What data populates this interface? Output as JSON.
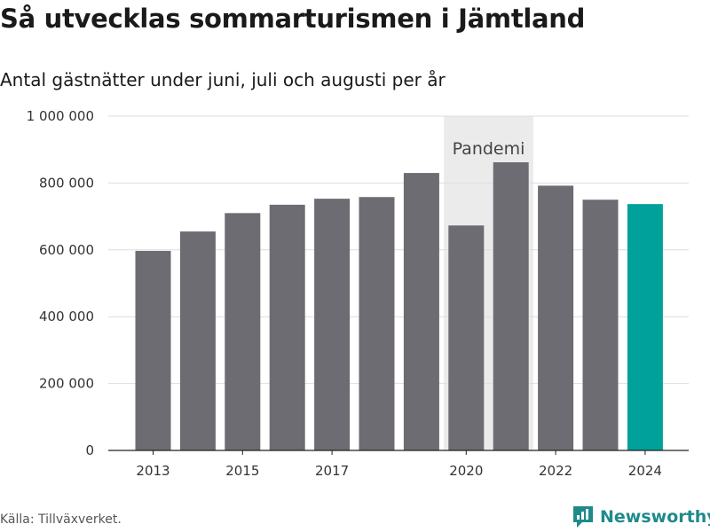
{
  "header": {
    "title": "Så utvecklas sommarturismen i Jämtland",
    "subtitle": "Antal gästnätter under juni, juli och augusti per år"
  },
  "footer": {
    "source": "Källa: Tillväxverket.",
    "brand": "Newsworthy"
  },
  "colors": {
    "bar": "#6d6c72",
    "highlight": "#00a19a",
    "grid": "#dedede",
    "shade": "#ebebeb",
    "brand": "#1f8a8a"
  },
  "icons": {
    "brand_logo": "newsworthy-logo-icon"
  },
  "chart_data": {
    "type": "bar",
    "categories": [
      "2013",
      "2014",
      "2015",
      "2016",
      "2017",
      "2018",
      "2019",
      "2020",
      "2021",
      "2022",
      "2023",
      "2024"
    ],
    "values": [
      597000,
      655000,
      710000,
      735000,
      753000,
      758000,
      830000,
      673000,
      862000,
      792000,
      750000,
      737000
    ],
    "highlight_index": 11,
    "ylim": [
      0,
      1000000
    ],
    "yticks": [
      0,
      200000,
      400000,
      600000,
      800000,
      1000000
    ],
    "ytick_labels": [
      "0",
      "200 000",
      "400 000",
      "600 000",
      "800 000",
      "1 000 000"
    ],
    "xtick_labels": [
      "2013",
      "2015",
      "2017",
      "2020",
      "2022",
      "2024"
    ],
    "shaded_region": {
      "label": "Pandemi",
      "from": "2020",
      "to": "2021"
    },
    "grid": true,
    "legend": "none"
  }
}
